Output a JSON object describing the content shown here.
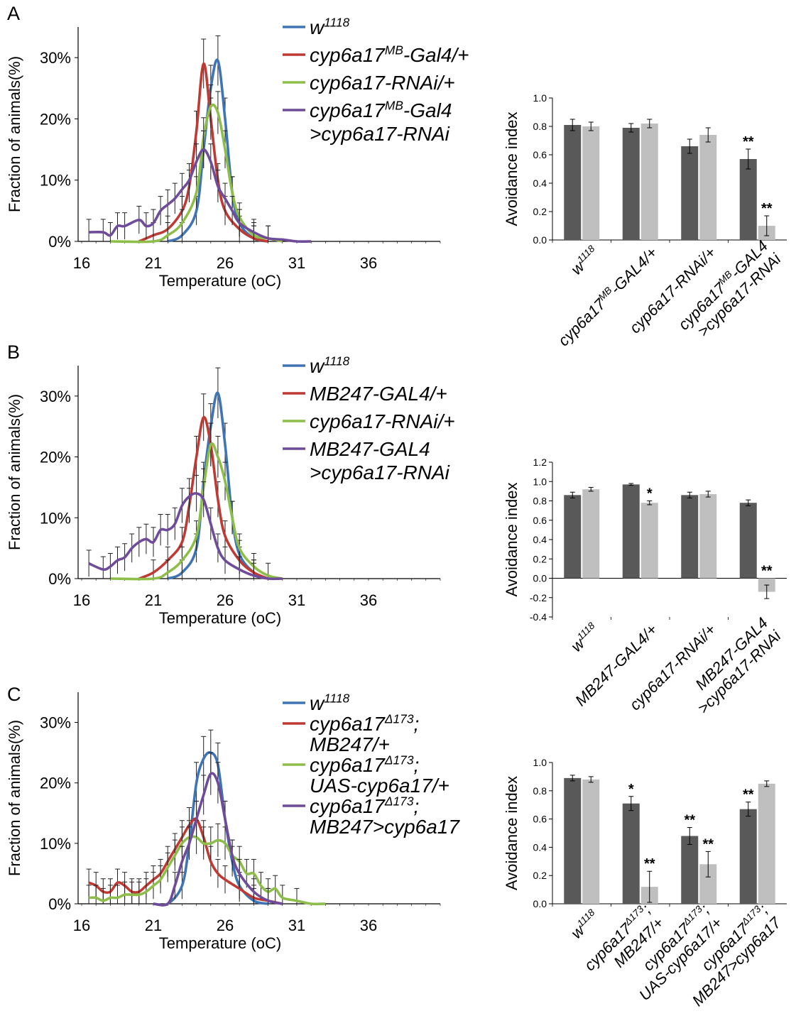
{
  "colors": {
    "blue": "#3F74B5",
    "red": "#BE3A34",
    "green": "#8DBE4A",
    "purple": "#6F4C99",
    "dark_bar": "#595959",
    "light_bar": "#BFBFBF"
  },
  "chart_data": [
    {
      "panel": "A",
      "type": "line",
      "ylabel": "Fraction of animals(%)",
      "xlabel": "Temperature (oC)",
      "xlim": [
        16,
        41
      ],
      "ylim": [
        0,
        35
      ],
      "xticks": [
        "16",
        "21",
        "26",
        "31",
        "36"
      ],
      "yticks": [
        "0%",
        "10%",
        "20%",
        "30%"
      ],
      "legend": [
        {
          "base": "w",
          "sup": "1118",
          "rest": ""
        },
        {
          "base": "cyp6a17",
          "sup": "MB",
          "rest": "-Gal4/+"
        },
        {
          "base": "cyp6a17-RNAi/+",
          "sup": "",
          "rest": ""
        },
        {
          "base": "cyp6a17",
          "sup": "MB",
          "rest": "-Gal4",
          "line2": ">cyp6a17-RNAi"
        }
      ],
      "series": [
        {
          "color": "blue",
          "x": [
            22,
            23,
            24,
            24.5,
            25,
            25.5,
            26,
            26.5,
            27,
            28,
            29
          ],
          "y": [
            0,
            1,
            5,
            15,
            25,
            29.5,
            20,
            8,
            3,
            0.5,
            0
          ]
        },
        {
          "color": "red",
          "x": [
            20,
            21,
            22,
            23,
            23.5,
            24,
            24.5,
            25,
            25.5,
            26,
            27,
            28,
            29
          ],
          "y": [
            0,
            1,
            2,
            5,
            9,
            18,
            29,
            20,
            10,
            5,
            2,
            0.5,
            0
          ]
        },
        {
          "color": "green",
          "x": [
            18,
            21,
            22,
            23,
            24,
            24.5,
            25,
            25.5,
            26,
            26.5,
            27,
            28,
            29,
            30
          ],
          "y": [
            0,
            0,
            1,
            3,
            8,
            17,
            22,
            21,
            15,
            8,
            4,
            1,
            0.5,
            0
          ]
        },
        {
          "color": "purple",
          "x": [
            16.5,
            17.5,
            18,
            18.5,
            19,
            20,
            20.5,
            21,
            21.5,
            22,
            22.5,
            23,
            23.5,
            24,
            24.5,
            25,
            25.5,
            26,
            26.5,
            27,
            28,
            29,
            30,
            31,
            32
          ],
          "y": [
            1.5,
            1.5,
            1,
            2.5,
            2.5,
            3.5,
            2.5,
            3,
            5,
            6,
            7,
            8.5,
            10,
            13,
            15,
            13,
            9,
            7,
            5,
            3,
            1.5,
            0.5,
            0.3,
            0,
            0
          ]
        }
      ]
    },
    {
      "panel": "A",
      "type": "bar",
      "ylabel": "Avoidance index",
      "ylim": [
        0,
        1.0
      ],
      "yticks": [
        "0.0",
        "0.2",
        "0.4",
        "0.6",
        "0.8",
        "1.0"
      ],
      "categories": [
        {
          "lines": [
            {
              "base": "w",
              "sup": "1118",
              "rest": ""
            }
          ]
        },
        {
          "lines": [
            {
              "base": "cyp6a17",
              "sup": "MB",
              "rest": "-GAL4/+"
            }
          ]
        },
        {
          "lines": [
            {
              "base": "cyp6a17-RNAi/+",
              "sup": "",
              "rest": ""
            }
          ]
        },
        {
          "lines": [
            {
              "base": "cyp6a17",
              "sup": "MB",
              "rest": "-GAL4"
            },
            {
              "base": ">cyp6a17-RNAi",
              "sup": "",
              "rest": ""
            }
          ]
        }
      ],
      "series": [
        {
          "color": "dark_bar",
          "values": [
            0.81,
            0.79,
            0.66,
            0.57
          ],
          "errors": [
            0.04,
            0.03,
            0.05,
            0.07
          ],
          "stars": [
            "",
            "",
            "",
            "**"
          ]
        },
        {
          "color": "light_bar",
          "values": [
            0.8,
            0.82,
            0.74,
            0.1
          ],
          "errors": [
            0.03,
            0.03,
            0.05,
            0.07
          ],
          "stars": [
            "",
            "",
            "",
            "**"
          ]
        }
      ]
    },
    {
      "panel": "B",
      "type": "line",
      "ylabel": "Fraction of animals(%)",
      "xlabel": "Temperature (oC)",
      "xlim": [
        16,
        41
      ],
      "ylim": [
        0,
        35
      ],
      "xticks": [
        "16",
        "21",
        "26",
        "31",
        "36"
      ],
      "yticks": [
        "0%",
        "10%",
        "20%",
        "30%"
      ],
      "legend": [
        {
          "base": "w",
          "sup": "1118",
          "rest": ""
        },
        {
          "base": "MB247-GAL4/+",
          "sup": "",
          "rest": ""
        },
        {
          "base": "cyp6a17-RNAi/+",
          "sup": "",
          "rest": ""
        },
        {
          "base": "MB247-GAL4",
          "sup": "",
          "rest": "",
          "line2": ">cyp6a17-RNAi"
        }
      ],
      "series": [
        {
          "color": "blue",
          "x": [
            22,
            23,
            24,
            24.5,
            25,
            25.5,
            26,
            26.5,
            27,
            28,
            29
          ],
          "y": [
            0,
            1,
            5,
            16,
            25,
            30.5,
            22,
            10,
            4,
            1,
            0
          ]
        },
        {
          "color": "red",
          "x": [
            20,
            21,
            22,
            23,
            23.5,
            24,
            24.5,
            25,
            25.5,
            26,
            27,
            28,
            29
          ],
          "y": [
            0,
            1,
            3,
            6,
            12,
            20,
            26.5,
            22,
            13,
            7,
            3,
            1,
            0
          ]
        },
        {
          "color": "green",
          "x": [
            18,
            21,
            22,
            23,
            24,
            24.5,
            25,
            25.5,
            26,
            26.5,
            27,
            28,
            29,
            30
          ],
          "y": [
            0,
            0,
            1,
            3,
            7,
            15,
            22,
            20,
            16,
            10,
            5,
            2,
            0.5,
            0
          ]
        },
        {
          "color": "purple",
          "x": [
            16.5,
            17.5,
            18,
            18.5,
            19,
            19.5,
            20,
            20.5,
            21,
            21.5,
            22,
            22.5,
            23,
            23.5,
            24,
            24.5,
            25,
            25.5,
            26,
            27,
            28,
            29,
            30
          ],
          "y": [
            2.5,
            1.5,
            2,
            3,
            3.5,
            5,
            6,
            6.5,
            6,
            8,
            8,
            9,
            12,
            13.5,
            14,
            13,
            9,
            5,
            3,
            1.5,
            0.5,
            0,
            0
          ]
        }
      ]
    },
    {
      "panel": "B",
      "type": "bar",
      "ylabel": "Avoidance index",
      "ylim": [
        -0.4,
        1.2
      ],
      "yticks": [
        "-0.4",
        "-0.2",
        "0.0",
        "0.2",
        "0.4",
        "0.6",
        "0.8",
        "1.0",
        "1.2"
      ],
      "categories": [
        {
          "lines": [
            {
              "base": "w",
              "sup": "1118",
              "rest": ""
            }
          ]
        },
        {
          "lines": [
            {
              "base": "MB247-GAL4/+",
              "sup": "",
              "rest": ""
            }
          ]
        },
        {
          "lines": [
            {
              "base": "cyp6a17-RNAi/+",
              "sup": "",
              "rest": ""
            }
          ]
        },
        {
          "lines": [
            {
              "base": "MB247-GAL4",
              "sup": "",
              "rest": ""
            },
            {
              "base": ">cyp6a17-RNAi",
              "sup": "",
              "rest": ""
            }
          ]
        }
      ],
      "series": [
        {
          "color": "dark_bar",
          "values": [
            0.86,
            0.97,
            0.86,
            0.78
          ],
          "errors": [
            0.03,
            0.01,
            0.03,
            0.03
          ],
          "stars": [
            "",
            "",
            "",
            ""
          ]
        },
        {
          "color": "light_bar",
          "values": [
            0.92,
            0.78,
            0.87,
            -0.14
          ],
          "errors": [
            0.02,
            0.02,
            0.03,
            0.07
          ],
          "stars": [
            "",
            "*",
            "",
            "**"
          ]
        }
      ]
    },
    {
      "panel": "C",
      "type": "line",
      "ylabel": "Fraction of animals(%)",
      "xlabel": "Temperature (oC)",
      "xlim": [
        16,
        41
      ],
      "ylim": [
        0,
        35
      ],
      "xticks": [
        "16",
        "21",
        "26",
        "31",
        "36"
      ],
      "yticks": [
        "0%",
        "10%",
        "20%",
        "30%"
      ],
      "legend": [
        {
          "base": "w",
          "sup": "1118",
          "rest": ""
        },
        {
          "base": "cyp6a17",
          "sup": "Δ173",
          "rest": ";",
          "line2": "MB247/+"
        },
        {
          "base": "cyp6a17",
          "sup": "Δ173",
          "rest": ";",
          "line2": "UAS-cyp6a17/+"
        },
        {
          "base": "cyp6a17",
          "sup": "Δ173",
          "rest": ";",
          "line2": "MB247>cyp6a17"
        }
      ],
      "series": [
        {
          "color": "blue",
          "x": [
            21,
            22,
            23,
            23.5,
            24,
            24.5,
            25,
            25.5,
            26,
            26.5,
            27,
            28,
            29
          ],
          "y": [
            0,
            0,
            3,
            10,
            20,
            24,
            25,
            23,
            14,
            7,
            3,
            0.5,
            0
          ]
        },
        {
          "color": "red",
          "x": [
            16.5,
            17,
            17.5,
            18,
            18.5,
            19,
            19.5,
            20,
            20.5,
            21,
            21.5,
            22,
            22.5,
            23,
            23.5,
            24,
            24.5,
            25,
            25.5,
            26,
            27,
            28,
            29,
            30
          ],
          "y": [
            3.5,
            3,
            2,
            2,
            3.5,
            3,
            2,
            2,
            3,
            4,
            5,
            7,
            9,
            11,
            13,
            14,
            11,
            7,
            5,
            4,
            2.5,
            1,
            0.5,
            0
          ]
        },
        {
          "color": "green",
          "x": [
            16.5,
            17,
            17.5,
            18,
            18.5,
            19,
            19.5,
            20,
            20.5,
            21,
            21.5,
            22,
            22.5,
            23,
            23.5,
            24,
            24.5,
            25,
            25.5,
            26,
            26.5,
            27,
            27.5,
            28,
            28.5,
            29,
            29.5,
            30,
            31,
            32,
            33
          ],
          "y": [
            1,
            1,
            0.5,
            1,
            1,
            1.5,
            1.5,
            1.5,
            2,
            3,
            4,
            6,
            8,
            10,
            11,
            11,
            10,
            10,
            10.5,
            10,
            8,
            7,
            5,
            5,
            3,
            2,
            2.5,
            1,
            0.5,
            0,
            0
          ]
        },
        {
          "color": "purple",
          "x": [
            21,
            22,
            22.5,
            23,
            23.5,
            24,
            24.5,
            25,
            25.5,
            26,
            26.5,
            27,
            28,
            29,
            30
          ],
          "y": [
            0,
            0,
            3,
            7,
            10,
            14,
            18,
            21.5,
            20,
            14,
            8,
            5,
            2,
            0.5,
            0
          ]
        }
      ]
    },
    {
      "panel": "C",
      "type": "bar",
      "ylabel": "Avoidance index",
      "ylim": [
        0,
        1.0
      ],
      "yticks": [
        "0.0",
        "0.2",
        "0.4",
        "0.6",
        "0.8",
        "1.0"
      ],
      "categories": [
        {
          "lines": [
            {
              "base": "w",
              "sup": "1118",
              "rest": ""
            }
          ]
        },
        {
          "lines": [
            {
              "base": "cyp6a17",
              "sup": "Δ173",
              "rest": ";"
            },
            {
              "base": "MB247/+",
              "sup": "",
              "rest": ""
            }
          ]
        },
        {
          "lines": [
            {
              "base": "cyp6a17",
              "sup": "Δ173",
              "rest": ";"
            },
            {
              "base": "UAS-cyp6a17/+",
              "sup": "",
              "rest": ""
            }
          ]
        },
        {
          "lines": [
            {
              "base": "cyp6a17",
              "sup": "Δ173",
              "rest": ";"
            },
            {
              "base": "MB247>cyp6a17",
              "sup": "",
              "rest": ""
            }
          ]
        }
      ],
      "series": [
        {
          "color": "dark_bar",
          "values": [
            0.89,
            0.71,
            0.48,
            0.67
          ],
          "errors": [
            0.02,
            0.05,
            0.06,
            0.05
          ],
          "stars": [
            "",
            "*",
            "**",
            "**"
          ]
        },
        {
          "color": "light_bar",
          "values": [
            0.88,
            0.12,
            0.28,
            0.85
          ],
          "errors": [
            0.02,
            0.11,
            0.09,
            0.02
          ],
          "stars": [
            "",
            "**",
            "**",
            ""
          ]
        }
      ]
    }
  ],
  "panels": [
    {
      "label": "A"
    },
    {
      "label": "B"
    },
    {
      "label": "C"
    }
  ]
}
